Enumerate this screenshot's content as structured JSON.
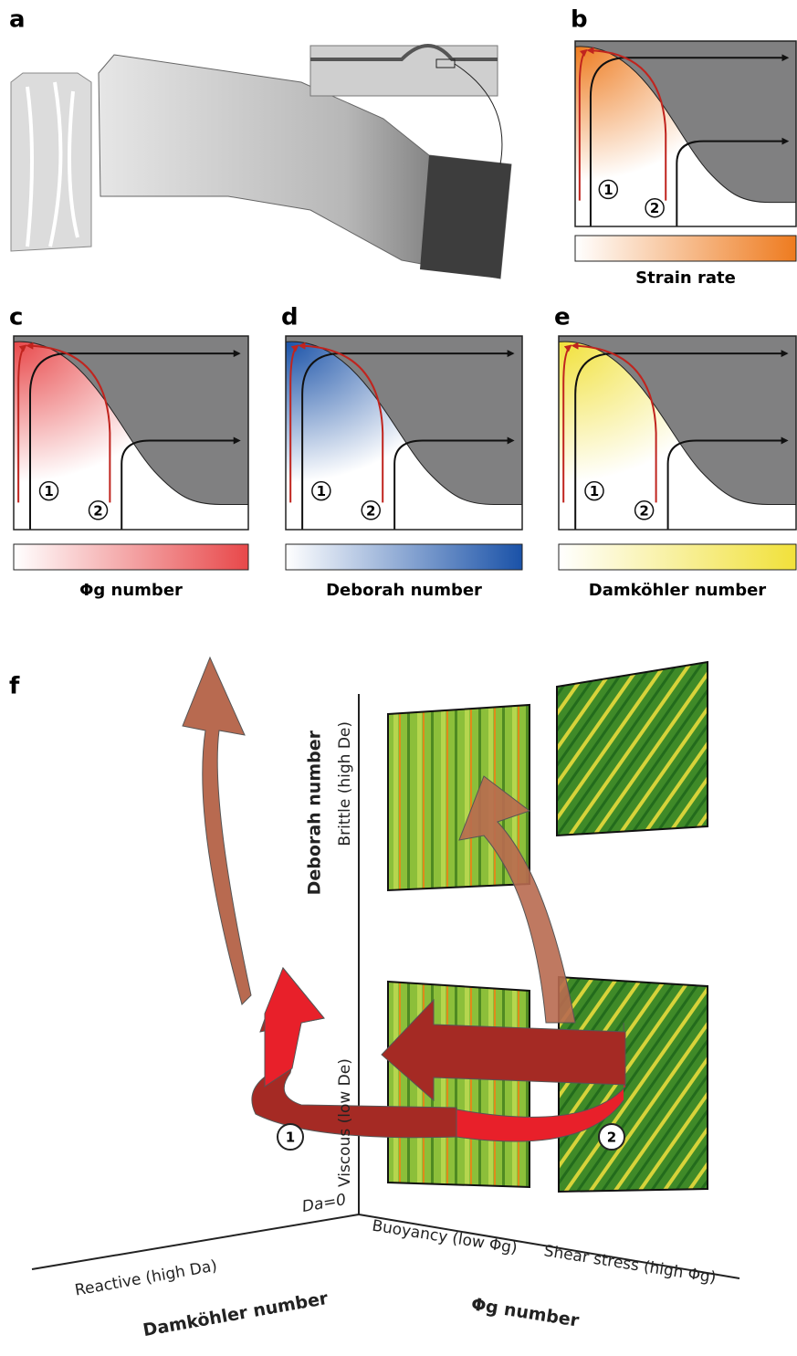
{
  "panel_a": {
    "label": "a"
  },
  "panels": [
    {
      "label": "b",
      "colorbar_label": "Strain rate",
      "color": "#ee7b1f",
      "markers": [
        "1",
        "2"
      ]
    },
    {
      "label": "c",
      "colorbar_label": "Φg number",
      "color": "#e8484a",
      "markers": [
        "1",
        "2"
      ]
    },
    {
      "label": "d",
      "colorbar_label": "Deborah number",
      "color": "#1a52a8",
      "markers": [
        "1",
        "2"
      ]
    },
    {
      "label": "e",
      "colorbar_label": "Damköhler number",
      "color": "#f1e13a",
      "markers": [
        "1",
        "2"
      ]
    }
  ],
  "panel_f": {
    "label": "f",
    "vertical_axis": {
      "title": "Deborah number",
      "high": "Brittle (high De)",
      "low": "Viscous (low De)"
    },
    "left_axis": {
      "title": "Damköhler number",
      "origin": "Da=0",
      "high": "Reactive (high Da)"
    },
    "right_axis": {
      "title": "Φg number",
      "low": "Buoyancy (low Φg)",
      "high": "Shear stress (high Φg)"
    },
    "markers": [
      "1",
      "2"
    ]
  }
}
